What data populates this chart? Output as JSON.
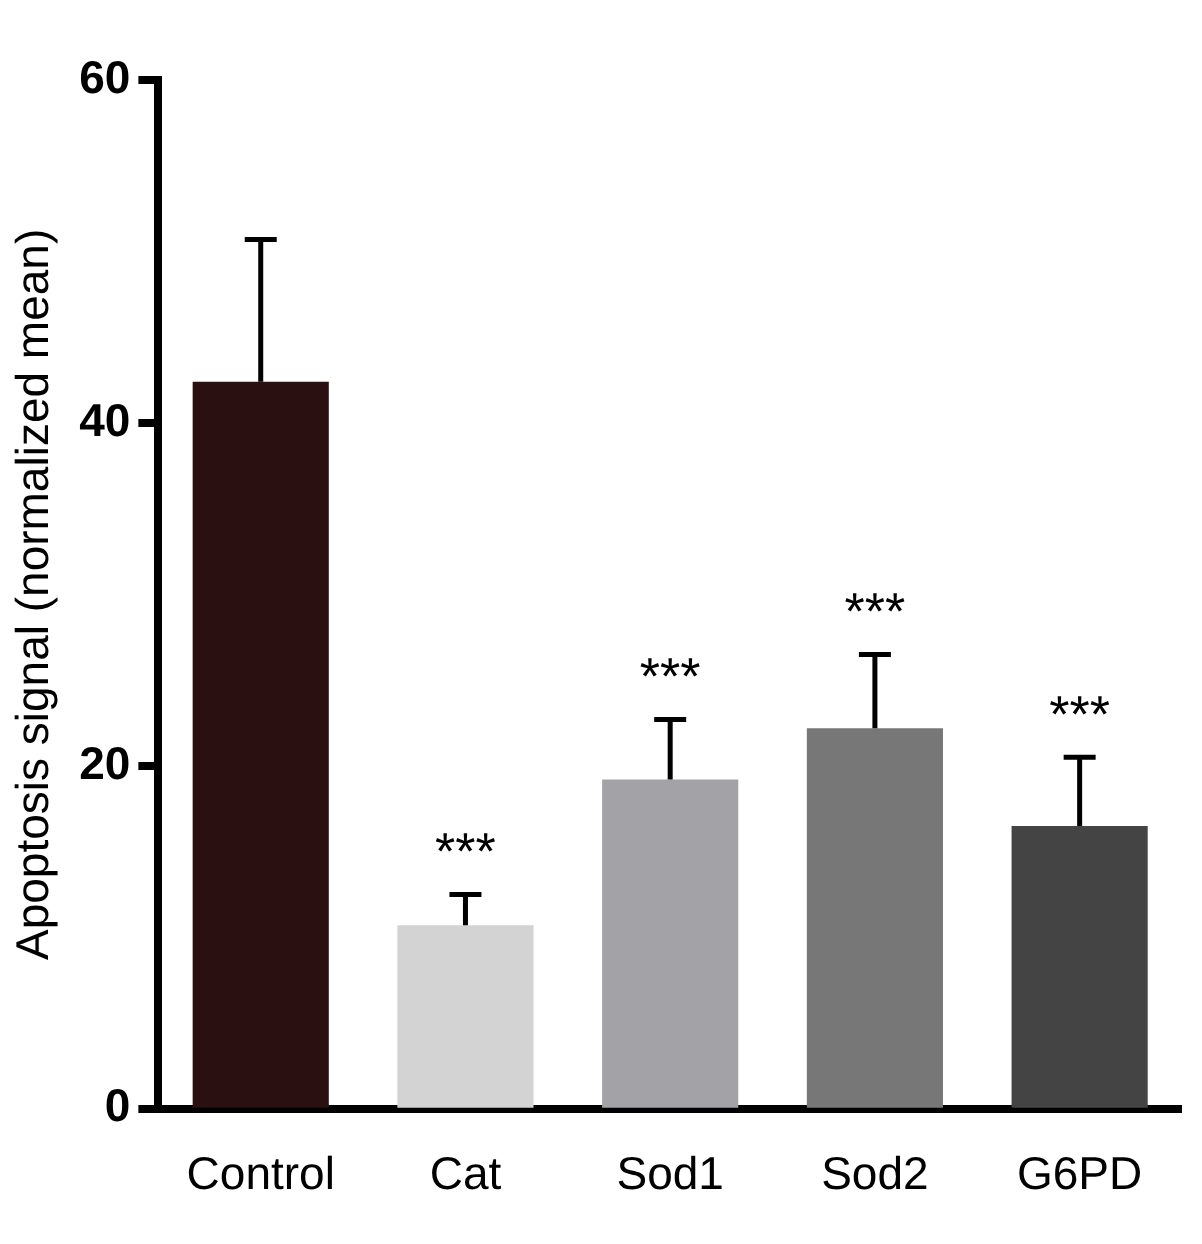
{
  "chart_data": {
    "type": "bar",
    "ylabel": "Apoptosis signal (normalized mean)",
    "categories": [
      "Control",
      "Cat",
      "Sod1",
      "Sod2",
      "G6PD"
    ],
    "values": [
      42.4,
      10.7,
      19.2,
      22.2,
      16.5
    ],
    "colors": [
      "#2b1012",
      "#d3d3d3",
      "#a3a2a6",
      "#777777",
      "#444444"
    ],
    "errors": [
      [
        42.4,
        50.7
      ],
      [
        10.7,
        12.5
      ],
      [
        19.2,
        22.7
      ],
      [
        22.2,
        26.5
      ],
      [
        16.5,
        20.5
      ]
    ],
    "ylim": [
      0,
      60
    ],
    "yticks": [
      0,
      20,
      40,
      60
    ],
    "grid": false,
    "legend": false,
    "annotations": [
      "***",
      "***",
      "***",
      "***"
    ]
  }
}
